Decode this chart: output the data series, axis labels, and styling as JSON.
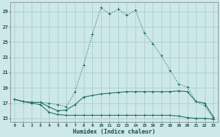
{
  "xlabel": "Humidex (Indice chaleur)",
  "bg_color": "#cde8e8",
  "grid_color": "#a8cccc",
  "line_color": "#1a6b5a",
  "x_ticks": [
    0,
    1,
    2,
    3,
    4,
    5,
    6,
    7,
    8,
    9,
    10,
    11,
    12,
    13,
    14,
    15,
    16,
    17,
    18,
    19,
    20,
    21,
    22,
    23
  ],
  "y_ticks": [
    15,
    17,
    19,
    21,
    23,
    25,
    27,
    29
  ],
  "ylim": [
    14.5,
    30.2
  ],
  "xlim": [
    -0.5,
    23.5
  ],
  "series1_dotted": [
    17.5,
    17.2,
    17.1,
    17.1,
    17.0,
    16.8,
    16.5,
    18.5,
    22.0,
    26.0,
    29.5,
    28.7,
    29.3,
    28.5,
    29.2,
    26.2,
    24.8,
    23.2,
    21.3,
    19.5,
    19.1,
    17.2,
    16.7,
    15.0
  ],
  "series2_solid": [
    17.5,
    17.2,
    17.1,
    17.1,
    16.5,
    16.0,
    16.1,
    16.8,
    17.8,
    18.0,
    18.2,
    18.3,
    18.4,
    18.5,
    18.5,
    18.5,
    18.5,
    18.5,
    18.5,
    18.6,
    18.5,
    17.2,
    17.0,
    15.2
  ],
  "series3_solid": [
    17.5,
    17.2,
    17.0,
    16.8,
    15.8,
    15.5,
    15.4,
    15.4,
    15.4,
    15.4,
    15.4,
    15.4,
    15.4,
    15.4,
    15.4,
    15.4,
    15.4,
    15.4,
    15.4,
    15.3,
    15.1,
    15.0,
    15.0,
    14.9
  ]
}
